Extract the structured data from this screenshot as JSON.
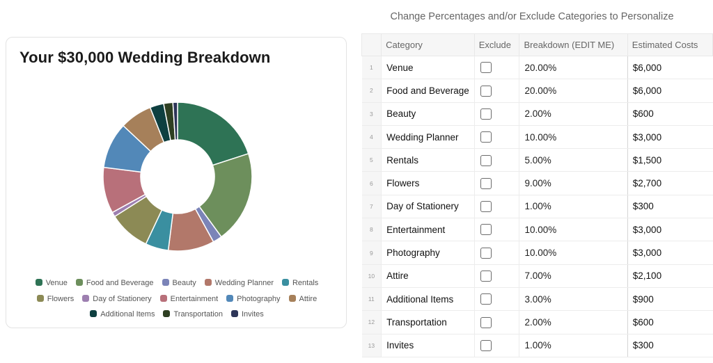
{
  "chart_title": "Your $30,000 Wedding Breakdown",
  "table_header_note": "Change Percentages and/or Exclude Categories to Personalize",
  "columns": {
    "index": "",
    "category": "Category",
    "exclude": "Exclude",
    "breakdown": "Breakdown (EDIT ME)",
    "cost": "Estimated Costs"
  },
  "rows": [
    {
      "index": "1",
      "category": "Venue",
      "breakdown": "20.00%",
      "cost": "$6,000",
      "excluded": false
    },
    {
      "index": "2",
      "category": "Food and Beverage",
      "breakdown": "20.00%",
      "cost": "$6,000",
      "excluded": false
    },
    {
      "index": "3",
      "category": "Beauty",
      "breakdown": "2.00%",
      "cost": "$600",
      "excluded": false
    },
    {
      "index": "4",
      "category": "Wedding Planner",
      "breakdown": "10.00%",
      "cost": "$3,000",
      "excluded": false
    },
    {
      "index": "5",
      "category": "Rentals",
      "breakdown": "5.00%",
      "cost": "$1,500",
      "excluded": false
    },
    {
      "index": "6",
      "category": "Flowers",
      "breakdown": "9.00%",
      "cost": "$2,700",
      "excluded": false
    },
    {
      "index": "7",
      "category": "Day of Stationery",
      "breakdown": "1.00%",
      "cost": "$300",
      "excluded": false
    },
    {
      "index": "8",
      "category": "Entertainment",
      "breakdown": "10.00%",
      "cost": "$3,000",
      "excluded": false
    },
    {
      "index": "9",
      "category": "Photography",
      "breakdown": "10.00%",
      "cost": "$3,000",
      "excluded": false
    },
    {
      "index": "10",
      "category": "Attire",
      "breakdown": "7.00%",
      "cost": "$2,100",
      "excluded": false
    },
    {
      "index": "11",
      "category": "Additional Items",
      "breakdown": "3.00%",
      "cost": "$900",
      "excluded": false
    },
    {
      "index": "12",
      "category": "Transportation",
      "breakdown": "2.00%",
      "cost": "$600",
      "excluded": false
    },
    {
      "index": "13",
      "category": "Invites",
      "breakdown": "1.00%",
      "cost": "$300",
      "excluded": false
    }
  ],
  "chart_data": {
    "type": "pie",
    "variant": "donut",
    "title": "Your $30,000 Wedding Breakdown",
    "legend_position": "bottom",
    "categories": [
      "Venue",
      "Food and Beverage",
      "Beauty",
      "Wedding Planner",
      "Rentals",
      "Flowers",
      "Day of Stationery",
      "Entertainment",
      "Photography",
      "Attire",
      "Additional Items",
      "Transportation",
      "Invites"
    ],
    "values": [
      6000,
      6000,
      600,
      3000,
      1500,
      2700,
      300,
      3000,
      3000,
      2100,
      900,
      600,
      300
    ],
    "colors": [
      "#2e7355",
      "#6d8f5c",
      "#7b84b8",
      "#b2786a",
      "#3a8fa0",
      "#8c8a55",
      "#9d7fb0",
      "#b8707a",
      "#5288b8",
      "#a6805a",
      "#0e3f40",
      "#2e3f22",
      "#2d3558"
    ]
  }
}
